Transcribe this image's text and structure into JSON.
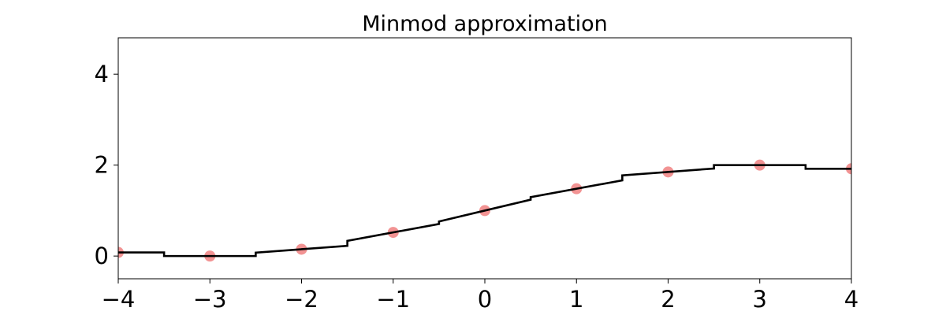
{
  "chart_data": {
    "type": "line",
    "title": "Minmod approximation",
    "xlabel": "",
    "ylabel": "",
    "xlim": [
      -4,
      4
    ],
    "ylim": [
      -0.5,
      4.8
    ],
    "xticks": [
      -4,
      -3,
      -2,
      -1,
      0,
      1,
      2,
      3,
      4
    ],
    "xtick_labels": [
      "−4",
      "−3",
      "−2",
      "−1",
      "0",
      "1",
      "2",
      "3",
      "4"
    ],
    "yticks": [
      0,
      2,
      4
    ],
    "ytick_labels": [
      "0",
      "2",
      "4"
    ],
    "grid": false,
    "series": [
      {
        "kind": "markers",
        "color": "#f08080",
        "x": [
          -4,
          -3,
          -2,
          -1,
          0,
          1,
          2,
          3,
          4
        ],
        "y": [
          0.08,
          0.0,
          0.15,
          0.52,
          1.0,
          1.48,
          1.85,
          2.0,
          1.92
        ]
      },
      {
        "kind": "piecewise-linear",
        "color": "#000000",
        "segments": [
          {
            "x": [
              -4.0,
              -3.5
            ],
            "y": [
              0.08,
              0.08
            ]
          },
          {
            "x": [
              -3.5,
              -2.5
            ],
            "y": [
              0.0,
              0.0
            ]
          },
          {
            "x": [
              -2.5,
              -1.5
            ],
            "y": [
              0.075,
              0.225
            ]
          },
          {
            "x": [
              -1.5,
              -0.5
            ],
            "y": [
              0.335,
              0.705
            ]
          },
          {
            "x": [
              -0.5,
              0.5
            ],
            "y": [
              0.76,
              1.24
            ]
          },
          {
            "x": [
              0.5,
              1.5
            ],
            "y": [
              1.295,
              1.665
            ]
          },
          {
            "x": [
              1.5,
              2.5
            ],
            "y": [
              1.775,
              1.925
            ]
          },
          {
            "x": [
              2.5,
              3.5
            ],
            "y": [
              2.0,
              2.0
            ]
          },
          {
            "x": [
              3.5,
              4.0
            ],
            "y": [
              1.92,
              1.92
            ]
          }
        ]
      }
    ]
  }
}
